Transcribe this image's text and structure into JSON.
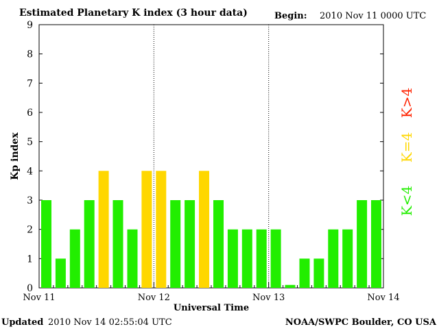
{
  "header": {
    "title": "Estimated Planetary K index (3 hour data)",
    "begin_label": "Begin:",
    "begin_value": "2010 Nov 11 0000 UTC"
  },
  "footer": {
    "updated_label": "Updated",
    "updated_value": "2010 Nov 14 02:55:04 UTC",
    "source": "NOAA/SWPC Boulder, CO USA"
  },
  "chart_data": {
    "type": "bar",
    "title": "Estimated Planetary K index (3 hour data)",
    "xlabel": "Universal Time",
    "ylabel": "Kp index",
    "ylim": [
      0,
      9
    ],
    "yticks": [
      "0",
      "1",
      "2",
      "3",
      "4",
      "5",
      "6",
      "7",
      "8",
      "9"
    ],
    "day_ticks": [
      "Nov 11",
      "Nov 12",
      "Nov 13",
      "Nov 14"
    ],
    "interval_hours": 3,
    "values": [
      3,
      1,
      2,
      3,
      4,
      3,
      2,
      4,
      4,
      3,
      3,
      4,
      3,
      2,
      2,
      2,
      2,
      0.1,
      1,
      1,
      2,
      2,
      3,
      3
    ],
    "legend": [
      {
        "label": "K<4",
        "color": "#22ee00"
      },
      {
        "label": "K=4",
        "color": "#ffd700"
      },
      {
        "label": "K>4",
        "color": "#ff2200"
      }
    ],
    "colors": {
      "low": "#22ee00",
      "equal": "#ffd700",
      "high": "#ff2200"
    }
  }
}
